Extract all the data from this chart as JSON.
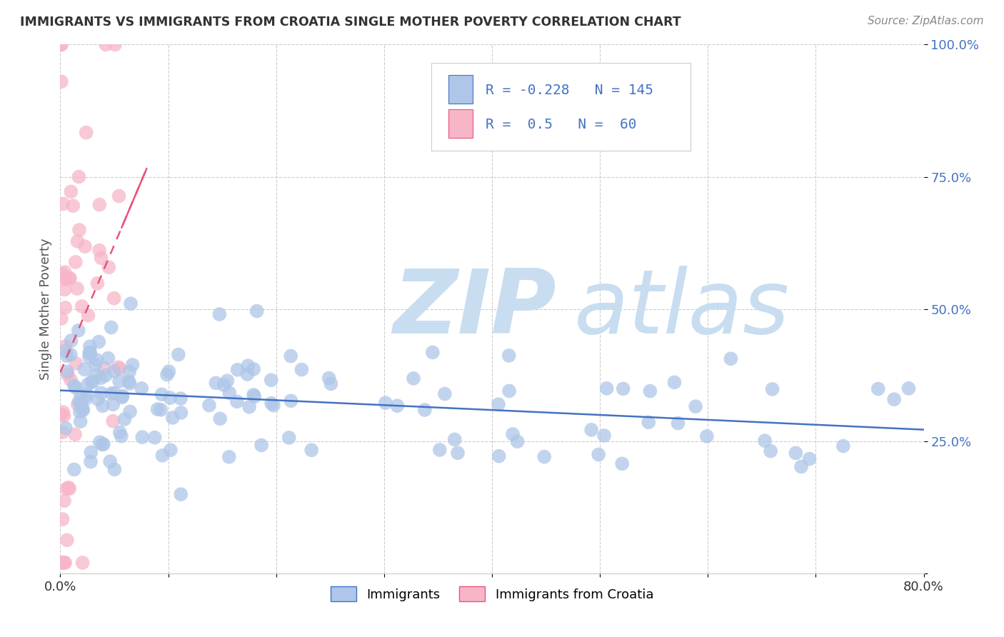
{
  "title": "IMMIGRANTS VS IMMIGRANTS FROM CROATIA SINGLE MOTHER POVERTY CORRELATION CHART",
  "source": "Source: ZipAtlas.com",
  "ylabel": "Single Mother Poverty",
  "blue_R": -0.228,
  "blue_N": 145,
  "pink_R": 0.5,
  "pink_N": 60,
  "blue_color": "#aec6e8",
  "blue_line_color": "#4472c4",
  "pink_color": "#f7b6c8",
  "pink_line_color": "#e8547a",
  "watermark_zip_color": "#c8ddf0",
  "watermark_atlas_color": "#c8ddf0",
  "background_color": "#ffffff",
  "xlim": [
    0.0,
    0.8
  ],
  "ylim": [
    0.0,
    1.0
  ],
  "ytick_vals": [
    0.0,
    0.25,
    0.5,
    0.75,
    1.0
  ],
  "ytick_labels": [
    "",
    "25.0%",
    "50.0%",
    "75.0%",
    "100.0%"
  ],
  "xtick_vals": [
    0.0,
    0.1,
    0.2,
    0.3,
    0.4,
    0.5,
    0.6,
    0.7,
    0.8
  ],
  "xtick_labels": [
    "0.0%",
    "",
    "",
    "",
    "",
    "",
    "",
    "",
    "80.0%"
  ]
}
